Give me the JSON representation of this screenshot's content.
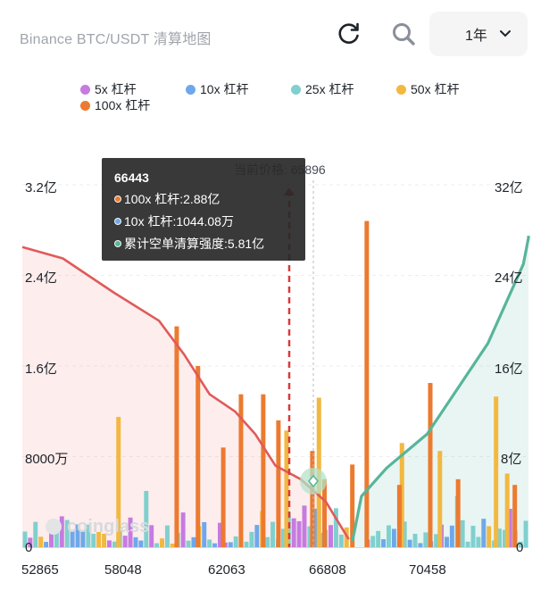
{
  "header": {
    "title": "Binance BTC/USDT 清算地图",
    "period_label": "1年",
    "refresh_icon": "refresh-icon",
    "search_icon": "search-icon",
    "dropdown_icon": "chevron-down-icon"
  },
  "legend": [
    {
      "label": "5x 杠杆",
      "color": "#c67be0"
    },
    {
      "label": "10x 杠杆",
      "color": "#6fa8ea"
    },
    {
      "label": "25x 杠杆",
      "color": "#7fd0cf"
    },
    {
      "label": "50x 杠杆",
      "color": "#f2b840"
    },
    {
      "label": "100x 杠杆",
      "color": "#ec7a2f"
    }
  ],
  "tooltip": {
    "price": "66443",
    "rows": [
      {
        "text": "100x 杠杆:2.88亿",
        "color": "#ec7a2f"
      },
      {
        "text": "10x 杠杆:1044.08万",
        "color": "#6fa8ea"
      },
      {
        "text": "累计空单清算强度:5.81亿",
        "color": "#57b59b"
      }
    ]
  },
  "current_price_label": "当前价格: 65896",
  "watermark": "coinglass",
  "chart_data": {
    "type": "bar",
    "title": "",
    "x_tick_labels": [
      "52865",
      "58048",
      "62063",
      "66808",
      "70458"
    ],
    "left_axis": {
      "ticks": [
        "0",
        "8000万",
        "1.6亿",
        "2.4亿",
        "3.2亿"
      ],
      "range": [
        0,
        3.2
      ],
      "unit": "亿"
    },
    "right_axis": {
      "ticks": [
        "0",
        "8亿",
        "16亿",
        "24亿",
        "32亿"
      ],
      "range": [
        0,
        32
      ],
      "unit": "亿"
    },
    "current_price": 65896,
    "series": [
      {
        "name": "5x 杠杆",
        "color": "#c67be0"
      },
      {
        "name": "10x 杠杆",
        "color": "#6fa8ea"
      },
      {
        "name": "25x 杠杆",
        "color": "#7fd0cf"
      },
      {
        "name": "50x 杠杆",
        "color": "#f2b840"
      },
      {
        "name": "100x 杠杆",
        "color": "#ec7a2f"
      }
    ],
    "bars_100x": [
      {
        "x": 0.305,
        "value": 1.95
      },
      {
        "x": 0.347,
        "value": 1.6
      },
      {
        "x": 0.397,
        "value": 0.88
      },
      {
        "x": 0.432,
        "value": 1.35
      },
      {
        "x": 0.476,
        "value": 1.35
      },
      {
        "x": 0.506,
        "value": 1.12
      },
      {
        "x": 0.573,
        "value": 0.85
      },
      {
        "x": 0.597,
        "value": 0.6
      },
      {
        "x": 0.652,
        "value": 0.73
      },
      {
        "x": 0.6805,
        "value": 2.88
      },
      {
        "x": 0.745,
        "value": 0.55
      },
      {
        "x": 0.806,
        "value": 1.45
      },
      {
        "x": 0.861,
        "value": 0.6
      },
      {
        "x": 0.973,
        "value": 0.55
      }
    ],
    "bars_50x": [
      {
        "x": 0.19,
        "value": 1.15
      },
      {
        "x": 0.522,
        "value": 1.03
      },
      {
        "x": 0.586,
        "value": 1.32
      },
      {
        "x": 0.75,
        "value": 0.92
      },
      {
        "x": 0.825,
        "value": 0.85
      },
      {
        "x": 0.936,
        "value": 1.33
      },
      {
        "x": 0.958,
        "value": 0.65
      }
    ],
    "long_cumulative": [
      {
        "x": 0.0,
        "y": 26.5
      },
      {
        "x": 0.08,
        "y": 25.5
      },
      {
        "x": 0.18,
        "y": 22.5
      },
      {
        "x": 0.27,
        "y": 20
      },
      {
        "x": 0.32,
        "y": 17
      },
      {
        "x": 0.37,
        "y": 13.5
      },
      {
        "x": 0.42,
        "y": 12
      },
      {
        "x": 0.46,
        "y": 10
      },
      {
        "x": 0.5,
        "y": 7.2
      },
      {
        "x": 0.55,
        "y": 6
      },
      {
        "x": 0.6,
        "y": 4
      },
      {
        "x": 0.645,
        "y": 0.7
      }
    ],
    "short_cumulative": [
      {
        "x": 0.652,
        "y": 0.5
      },
      {
        "x": 0.67,
        "y": 4.5
      },
      {
        "x": 0.72,
        "y": 7
      },
      {
        "x": 0.8,
        "y": 10
      },
      {
        "x": 0.86,
        "y": 14
      },
      {
        "x": 0.92,
        "y": 18
      },
      {
        "x": 0.99,
        "y": 25
      },
      {
        "x": 1.04,
        "y": 27.3
      },
      {
        "x": 1.1,
        "y": 27.5
      }
    ]
  }
}
